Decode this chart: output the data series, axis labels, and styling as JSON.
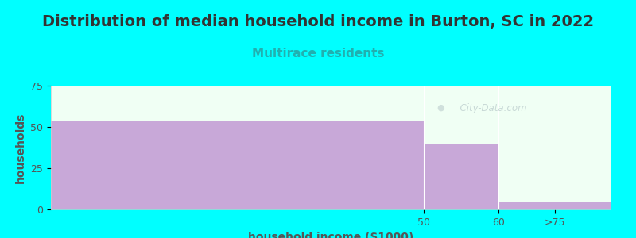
{
  "title": "Distribution of median household income in Burton, SC in 2022",
  "subtitle": "Multirace residents",
  "xlabel": "household income ($1000)",
  "ylabel": "households",
  "background_color": "#00FFFF",
  "plot_bg_color": "#F0FFF4",
  "bar_color": "#C8A8D8",
  "tick_labels": [
    "50",
    "60",
    ">75"
  ],
  "values": [
    54,
    40,
    5
  ],
  "ylim": [
    0,
    75
  ],
  "yticks": [
    0,
    25,
    50,
    75
  ],
  "title_fontsize": 14,
  "subtitle_fontsize": 11,
  "subtitle_color": "#20B0B0",
  "axis_label_fontsize": 10,
  "tick_fontsize": 9,
  "watermark": "  City-Data.com"
}
